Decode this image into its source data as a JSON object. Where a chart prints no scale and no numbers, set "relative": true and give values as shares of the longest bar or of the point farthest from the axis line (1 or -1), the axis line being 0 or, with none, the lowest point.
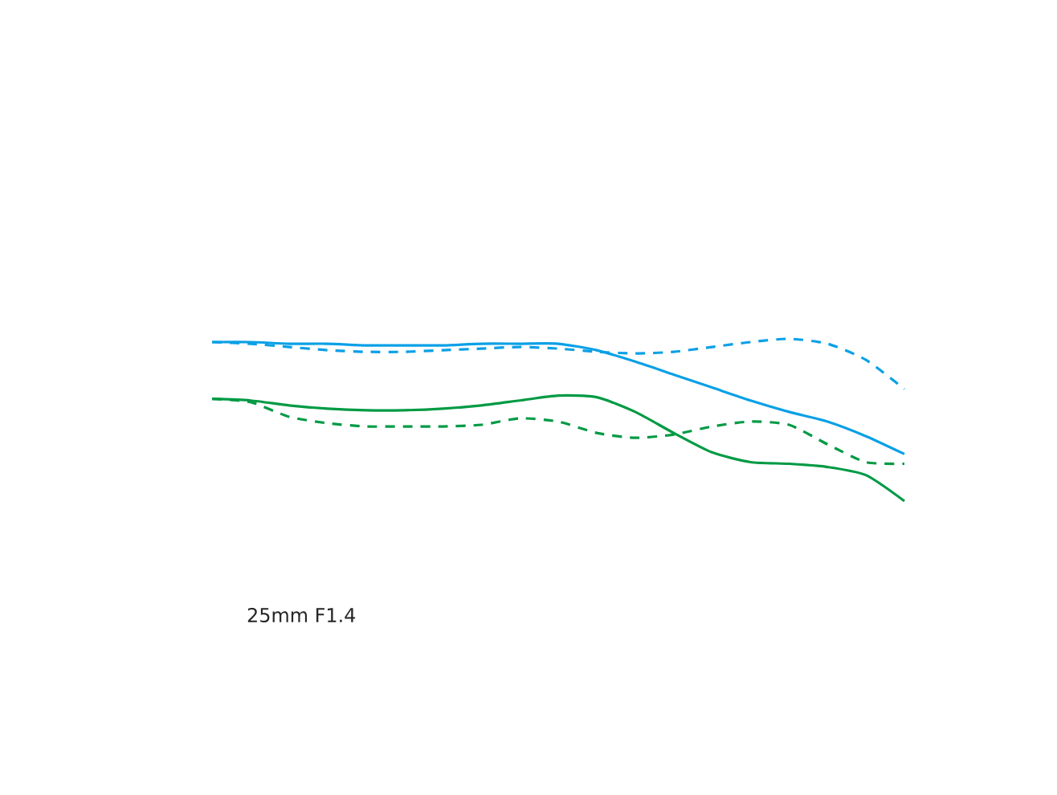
{
  "chart_data": {
    "type": "line",
    "title": "25mm F1.4",
    "relative": true,
    "categories": [
      null,
      null,
      null,
      null,
      null,
      null,
      null,
      null,
      null,
      null,
      null,
      null,
      null,
      null,
      null,
      null,
      null,
      null,
      null
    ],
    "series": [
      {
        "color": "#0aa0e6",
        "line_style": "solid",
        "values": [
          0.98,
          0.98,
          0.97,
          0.97,
          0.96,
          0.96,
          0.96,
          0.97,
          0.97,
          0.97,
          0.93,
          0.86,
          0.78,
          0.7,
          0.62,
          0.55,
          0.49,
          0.4,
          0.29
        ]
      },
      {
        "color": "#0aa0e6",
        "line_style": "dashed",
        "values": [
          0.98,
          0.97,
          0.95,
          0.93,
          0.92,
          0.92,
          0.93,
          0.94,
          0.95,
          0.94,
          0.92,
          0.91,
          0.92,
          0.95,
          0.98,
          1.0,
          0.97,
          0.87,
          0.69
        ]
      },
      {
        "color": "#009a44",
        "line_style": "solid",
        "values": [
          0.63,
          0.62,
          0.59,
          0.57,
          0.56,
          0.56,
          0.57,
          0.59,
          0.62,
          0.65,
          0.64,
          0.55,
          0.42,
          0.3,
          0.24,
          0.23,
          0.21,
          0.16,
          0.0
        ]
      },
      {
        "color": "#009a44",
        "line_style": "dashed",
        "values": [
          0.63,
          0.61,
          0.52,
          0.48,
          0.46,
          0.46,
          0.46,
          0.47,
          0.51,
          0.49,
          0.42,
          0.39,
          0.41,
          0.46,
          0.49,
          0.47,
          0.35,
          0.24,
          0.23
        ]
      }
    ]
  }
}
